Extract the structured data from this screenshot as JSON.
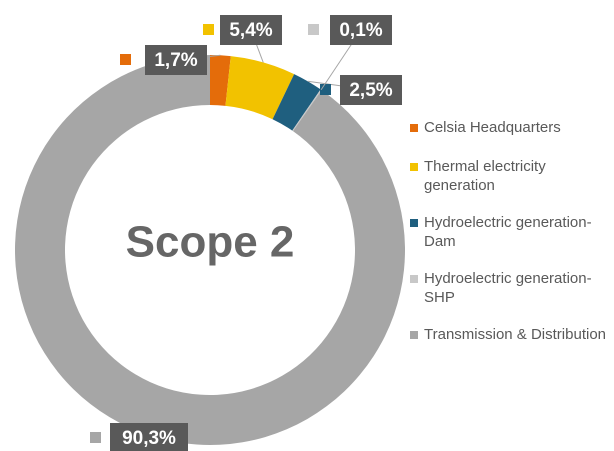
{
  "chart_data": {
    "type": "donut",
    "center_text": "Scope 2",
    "categories": [
      "Celsia Headquarters",
      "Thermal electricity generation",
      "Hydroelectric generation-Dam",
      "Hydroelectric generation-SHP",
      "Transmission & Distribution"
    ],
    "values": [
      1.7,
      5.4,
      2.5,
      0.1,
      90.3
    ],
    "value_labels": [
      "1,7%",
      "5,4%",
      "2,5%",
      "0,1%",
      "90,3%"
    ],
    "colors": [
      "#e46c0a",
      "#f2c200",
      "#1f5f7f",
      "#c8c8c8",
      "#a6a6a6"
    ],
    "legend": "right"
  }
}
